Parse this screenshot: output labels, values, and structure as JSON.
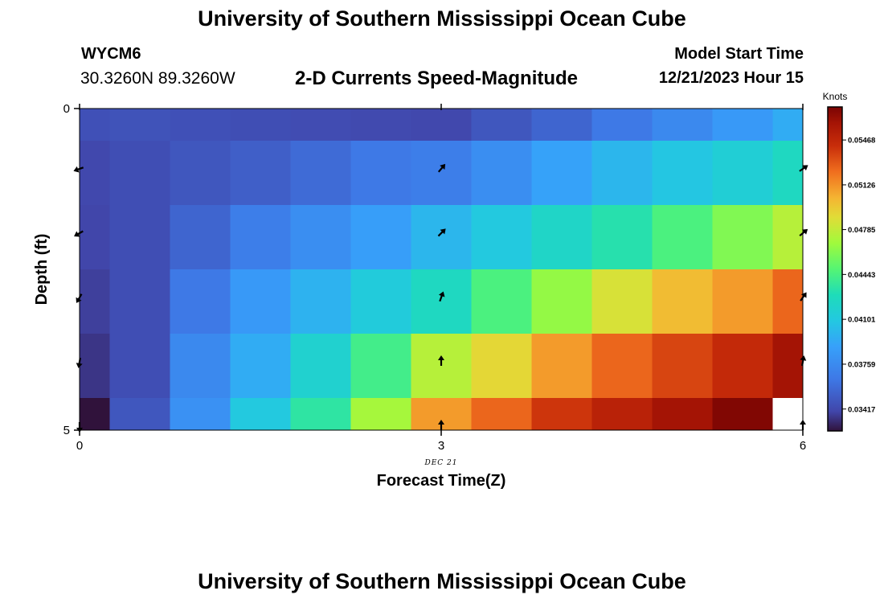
{
  "header": {
    "title": "University of Southern Mississippi Ocean Cube",
    "station": "WYCM6",
    "coords": "30.3260N  89.3260W",
    "subtitle": "2-D Currents Speed-Magnitude",
    "model_start_label": "Model Start Time",
    "model_start_value": "12/21/2023 Hour 15"
  },
  "footer": {
    "title": "University of Southern Mississippi Ocean Cube"
  },
  "chart_data": {
    "type": "heatmap",
    "xlabel": "Forecast Time(Z)",
    "ylabel": "Depth (ft)",
    "x_tick_labels": [
      "0",
      "3",
      "6"
    ],
    "x_date_label": "DEC 21",
    "y_tick_labels": [
      "0",
      "5"
    ],
    "xlim": [
      0,
      6
    ],
    "ylim": [
      0,
      5
    ],
    "colorbar": {
      "unit": "Knots",
      "tick_labels": [
        "0.03417",
        "0.03759",
        "0.04101",
        "0.04443",
        "0.04785",
        "0.05126",
        "0.05468"
      ],
      "range": [
        0.0325,
        0.0572
      ]
    },
    "x": [
      0,
      0.5,
      1,
      1.5,
      2,
      2.5,
      3,
      3.5,
      4,
      4.5,
      5,
      5.5,
      6
    ],
    "depths": [
      0,
      1,
      2,
      3,
      4,
      5
    ],
    "values": [
      [
        0.0345,
        0.0346,
        0.0345,
        0.0344,
        0.0343,
        0.0342,
        0.0341,
        0.0348,
        0.0355,
        0.0365,
        0.0375,
        0.0385,
        0.0395
      ],
      [
        0.0341,
        0.0344,
        0.0348,
        0.0352,
        0.0358,
        0.0365,
        0.0368,
        0.0378,
        0.039,
        0.04,
        0.0408,
        0.0415,
        0.0425
      ],
      [
        0.034,
        0.0344,
        0.0355,
        0.0368,
        0.0378,
        0.0388,
        0.04,
        0.041,
        0.0422,
        0.0432,
        0.0445,
        0.046,
        0.0475
      ],
      [
        0.0338,
        0.0344,
        0.0365,
        0.0385,
        0.0398,
        0.0412,
        0.0425,
        0.0445,
        0.0465,
        0.0485,
        0.05,
        0.051,
        0.0525
      ],
      [
        0.0335,
        0.0344,
        0.0375,
        0.0395,
        0.0418,
        0.0442,
        0.0475,
        0.049,
        0.051,
        0.0525,
        0.0535,
        0.0545,
        0.056
      ],
      [
        0.032,
        0.0348,
        0.038,
        0.041,
        0.0435,
        0.047,
        0.051,
        0.0525,
        0.054,
        0.055,
        0.056,
        0.057,
        null
      ]
    ],
    "arrows": [
      {
        "x": 0,
        "depth": 1,
        "angle": 160
      },
      {
        "x": 0,
        "depth": 2,
        "angle": 150
      },
      {
        "x": 0,
        "depth": 3,
        "angle": 120
      },
      {
        "x": 0,
        "depth": 4,
        "angle": 100
      },
      {
        "x": 0,
        "depth": 5,
        "angle": 90
      },
      {
        "x": 3,
        "depth": 1,
        "angle": -50
      },
      {
        "x": 3,
        "depth": 2,
        "angle": -45
      },
      {
        "x": 3,
        "depth": 3,
        "angle": -70
      },
      {
        "x": 3,
        "depth": 4,
        "angle": -90
      },
      {
        "x": 3,
        "depth": 5,
        "angle": -90
      },
      {
        "x": 6,
        "depth": 1,
        "angle": -35
      },
      {
        "x": 6,
        "depth": 2,
        "angle": -40
      },
      {
        "x": 6,
        "depth": 3,
        "angle": -55
      },
      {
        "x": 6,
        "depth": 4,
        "angle": -80
      },
      {
        "x": 6,
        "depth": 5,
        "angle": -90
      }
    ]
  }
}
